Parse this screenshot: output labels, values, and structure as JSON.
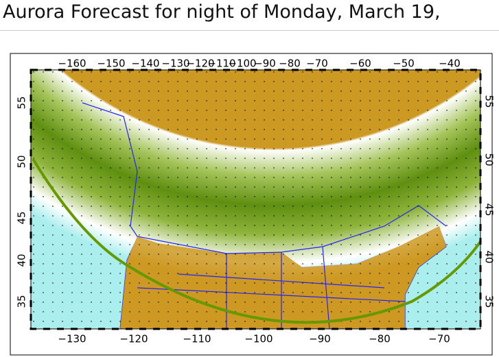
{
  "header": {
    "title": "Aurora Forecast for night of Monday, March 19,"
  },
  "map": {
    "top_labels": [
      "−160",
      "−150",
      "−140",
      "−130",
      "−120",
      "−110",
      "−100",
      "−90",
      "−80",
      "−70",
      "−60",
      "−50",
      "−40"
    ],
    "bottom_labels": [
      "−130",
      "−120",
      "−110",
      "−100",
      "−90",
      "−80",
      "−70"
    ],
    "left_labels": [
      "55",
      "50",
      "45",
      "40",
      "35"
    ],
    "right_labels": [
      "55",
      "50",
      "45",
      "40",
      "35"
    ]
  }
}
